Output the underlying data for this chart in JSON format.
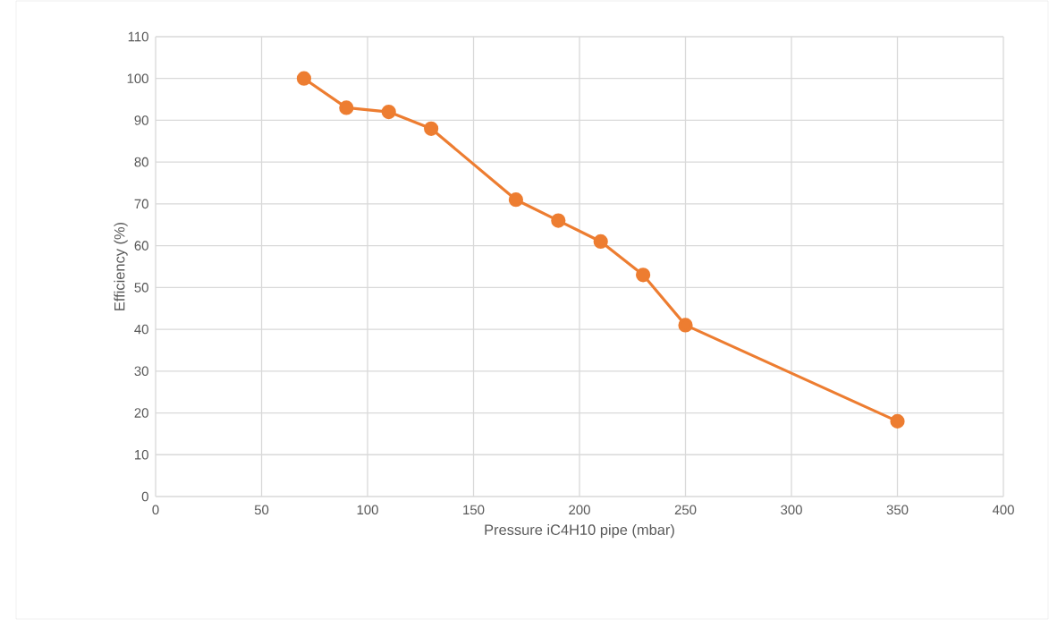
{
  "chart_data": {
    "type": "line",
    "xlabel": "Pressure iC4H10 pipe (mbar)",
    "ylabel": "Efficiency (%)",
    "x": [
      70,
      90,
      110,
      130,
      170,
      190,
      210,
      230,
      250,
      350
    ],
    "series": [
      {
        "color": "#ed7d31",
        "values": [
          100,
          93,
          92,
          88,
          71,
          66,
          61,
          53,
          41,
          18
        ]
      }
    ],
    "xlim": [
      0,
      400
    ],
    "xticks": [
      0,
      50,
      100,
      150,
      200,
      250,
      300,
      350,
      400
    ],
    "ylim": [
      0,
      110
    ],
    "yticks": [
      0,
      10,
      20,
      30,
      40,
      50,
      60,
      70,
      80,
      90,
      100,
      110
    ],
    "grid": true,
    "marker": "circle"
  }
}
